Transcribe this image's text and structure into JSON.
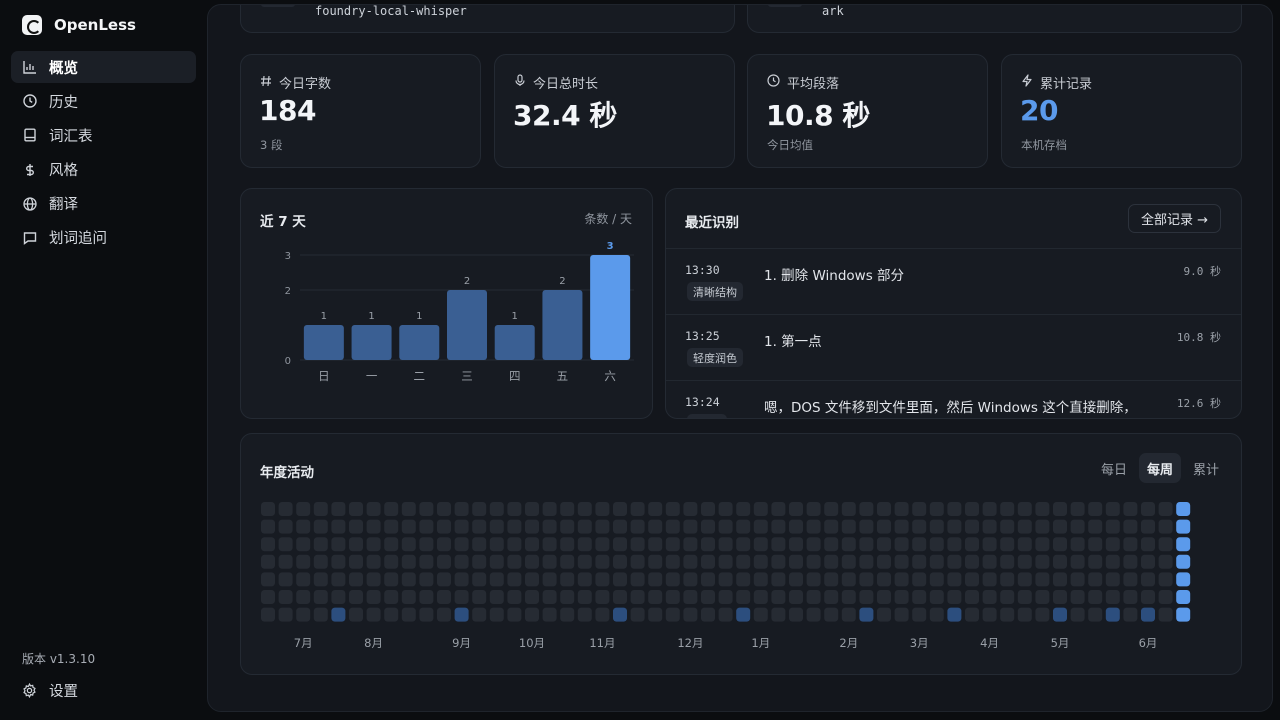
{
  "app": {
    "name": "OpenLess",
    "version": "版本 v1.3.10"
  },
  "sidebar": {
    "items": [
      {
        "label": "概览",
        "icon": "bar-chart-icon",
        "active": true
      },
      {
        "label": "历史",
        "icon": "clock-icon"
      },
      {
        "label": "词汇表",
        "icon": "book-icon"
      },
      {
        "label": "风格",
        "icon": "dollar-icon"
      },
      {
        "label": "翻译",
        "icon": "globe-icon"
      },
      {
        "label": "划词追问",
        "icon": "chat-icon"
      }
    ],
    "settings_label": "设置"
  },
  "top_cards": [
    {
      "text": "foundry-local-whisper"
    },
    {
      "text": "ark"
    }
  ],
  "stats": [
    {
      "label": "今日字数",
      "icon": "hash-icon",
      "value": "184",
      "sub": "3 段"
    },
    {
      "label": "今日总时长",
      "icon": "mic-icon",
      "value": "32.4 秒",
      "sub": ""
    },
    {
      "label": "平均段落",
      "icon": "clock-icon",
      "value": "10.8 秒",
      "sub": "今日均值"
    },
    {
      "label": "累计记录",
      "icon": "bolt-icon",
      "value": "20",
      "sub": "本机存档",
      "accent": "#5b9aeb"
    }
  ],
  "chart": {
    "title": "近 7 天",
    "unit": "条数 / 天"
  },
  "chart_data": {
    "type": "bar",
    "categories": [
      "日",
      "一",
      "二",
      "三",
      "四",
      "五",
      "六"
    ],
    "values": [
      1,
      1,
      1,
      2,
      1,
      2,
      3
    ],
    "ylim": [
      0,
      3
    ],
    "yticks": [
      0,
      2,
      3
    ],
    "highlight_index": 6,
    "colors": {
      "bar": "#3a5f93",
      "highlight": "#5b9aeb"
    }
  },
  "recent": {
    "title": "最近识别",
    "all_label": "全部记录 →",
    "items": [
      {
        "time": "13:30",
        "tag": "清晰结构",
        "text": "1. 删除 Windows 部分",
        "duration": "9.0 秒"
      },
      {
        "time": "13:25",
        "tag": "轻度润色",
        "text": "1. 第一点",
        "duration": "10.8 秒"
      },
      {
        "time": "13:24",
        "tag": "",
        "text": "嗯，DOS 文件移到文件里面，然后 Windows 这个直接删除，",
        "duration": "12.6 秒"
      }
    ]
  },
  "annual": {
    "title": "年度活动",
    "modes": [
      {
        "label": "每日"
      },
      {
        "label": "每周",
        "active": true
      },
      {
        "label": "累计"
      }
    ],
    "months": [
      "7月",
      "8月",
      "9月",
      "10月",
      "11月",
      "12月",
      "1月",
      "2月",
      "3月",
      "4月",
      "5月",
      "6月"
    ],
    "month_week_index": [
      2,
      6,
      11,
      15,
      19,
      24,
      28,
      33,
      37,
      41,
      45,
      50
    ],
    "weeks": 53,
    "days": 7,
    "active_bottom_weeks": [
      4,
      11,
      20,
      27,
      34,
      39,
      45,
      48,
      50
    ],
    "current_week": 52,
    "colors": {
      "empty": "#262b33",
      "low": "#2c4e7e",
      "high": "#5b9aeb"
    }
  }
}
